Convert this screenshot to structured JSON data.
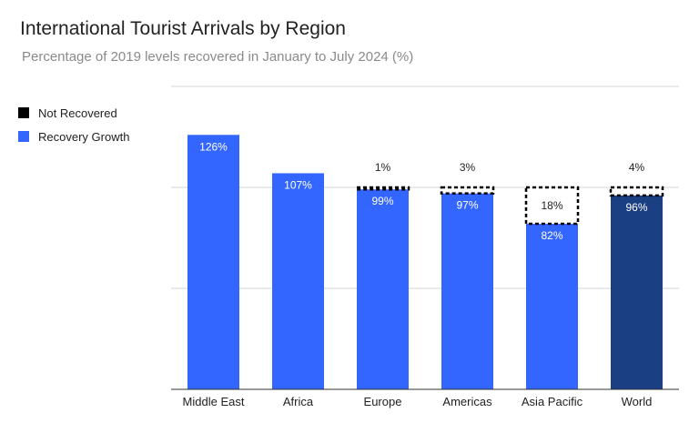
{
  "chart_data": {
    "type": "bar",
    "title": "International Tourist Arrivals by Region",
    "subtitle": "Percentage of 2019 levels recovered in January to July 2024 (%)",
    "categories": [
      "Middle East",
      "Africa",
      "Europe",
      "Americas",
      "Asia Pacific",
      "World"
    ],
    "series": [
      {
        "name": "Recovery Growth",
        "values": [
          126,
          107,
          99,
          97,
          82,
          96
        ],
        "labels": [
          "126%",
          "107%",
          "99%",
          "97%",
          "82%",
          "96%"
        ]
      },
      {
        "name": "Not Recovered",
        "values": [
          0,
          0,
          1,
          3,
          18,
          4
        ],
        "labels": [
          "",
          "",
          "1%",
          "3%",
          "18%",
          "4%"
        ]
      }
    ],
    "ylim": [
      0,
      150
    ],
    "grid": true,
    "legend": "top-left",
    "colors": {
      "recovery": "#3366ff",
      "world": "#1a3f82",
      "not_recovered_border": "#000000"
    }
  }
}
